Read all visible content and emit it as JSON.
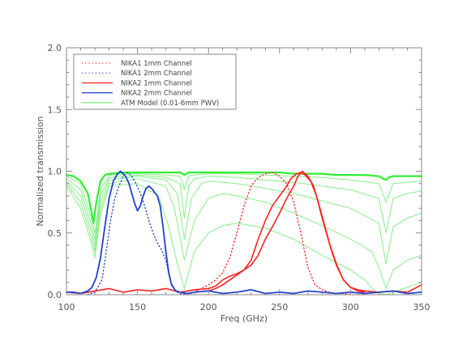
{
  "chart_data": {
    "type": "line",
    "xlabel": "Freq (GHz)",
    "ylabel": "Normalized transmission",
    "xlim": [
      100,
      350
    ],
    "ylim": [
      0,
      2.0
    ],
    "x_ticks": [
      "100",
      "150",
      "200",
      "250",
      "300",
      "350"
    ],
    "y_ticks": [
      "0.0",
      "0.5",
      "1.0",
      "1.5",
      "2.0"
    ],
    "grid": false,
    "legend_position": "top-left",
    "legend": [
      {
        "label": "NIKA1  1mm Channel",
        "color": "#ff2020",
        "style": "dotted"
      },
      {
        "label": "NIKA1  2mm Channel",
        "color": "#2040d0",
        "style": "dotted"
      },
      {
        "label": "NIKA2  1mm Channel",
        "color": "#ff2020",
        "style": "solid"
      },
      {
        "label": "NIKA2  2mm Channel",
        "color": "#2040d0",
        "style": "solid"
      },
      {
        "label": "ATM Model (0.01-6mm PWV)",
        "color": "#66ee66",
        "style": "solid"
      }
    ],
    "series": [
      {
        "name": "NIKA1  1mm Channel",
        "color": "#ff2020",
        "style": "dotted",
        "width": 1.3,
        "x": [
          185,
          190,
          195,
          200,
          205,
          210,
          215,
          220,
          225,
          230,
          235,
          240,
          245,
          250,
          255,
          260,
          265,
          270,
          275,
          280,
          285,
          290,
          295,
          300,
          310
        ],
        "y": [
          0,
          0.02,
          0.05,
          0.08,
          0.12,
          0.18,
          0.3,
          0.5,
          0.72,
          0.88,
          0.95,
          0.98,
          0.99,
          0.96,
          0.9,
          0.75,
          0.5,
          0.22,
          0.08,
          0.04,
          0.02,
          0.01,
          0.01,
          0,
          0
        ]
      },
      {
        "name": "NIKA1  2mm Channel",
        "color": "#2040d0",
        "style": "dotted",
        "width": 1.3,
        "x": [
          115,
          120,
          125,
          128,
          131,
          134,
          137,
          140,
          143,
          146,
          149,
          152,
          155,
          158,
          161,
          164,
          167,
          170,
          173,
          176,
          180,
          185
        ],
        "y": [
          0,
          0.02,
          0.12,
          0.35,
          0.6,
          0.78,
          0.88,
          0.96,
          0.99,
          0.96,
          0.9,
          0.82,
          0.72,
          0.6,
          0.5,
          0.42,
          0.36,
          0.28,
          0.12,
          0.03,
          0.01,
          0
        ]
      },
      {
        "name": "NIKA2  1mm Channel (a)",
        "color": "#ff2020",
        "style": "solid",
        "width": 1.6,
        "x": [
          100,
          110,
          120,
          130,
          140,
          150,
          160,
          170,
          180,
          190,
          200,
          205,
          210,
          215,
          220,
          225,
          230,
          235,
          240,
          245,
          250,
          255,
          258,
          262,
          265,
          268,
          272,
          276,
          280,
          285,
          290,
          295,
          300,
          305,
          310,
          320,
          330,
          340,
          345,
          350
        ],
        "y": [
          0.02,
          0.01,
          0.03,
          0.05,
          0.02,
          0.04,
          0.03,
          0.05,
          0.02,
          0.04,
          0.05,
          0.07,
          0.12,
          0.15,
          0.17,
          0.2,
          0.28,
          0.45,
          0.6,
          0.72,
          0.8,
          0.88,
          0.94,
          0.98,
          0.99,
          0.97,
          0.92,
          0.8,
          0.62,
          0.42,
          0.25,
          0.12,
          0.06,
          0.04,
          0.03,
          0.02,
          0.03,
          0.02,
          0.05,
          0.08
        ]
      },
      {
        "name": "NIKA2  1mm Channel (b)",
        "color": "#ff2020",
        "style": "solid",
        "width": 1.6,
        "x": [
          200,
          205,
          210,
          215,
          220,
          225,
          230,
          235,
          240,
          245,
          250,
          255,
          260,
          263,
          266,
          270,
          274,
          278,
          282,
          286,
          290,
          295,
          300,
          305,
          310
        ],
        "y": [
          0.03,
          0.05,
          0.08,
          0.12,
          0.16,
          0.2,
          0.24,
          0.32,
          0.45,
          0.55,
          0.66,
          0.78,
          0.88,
          0.96,
          1.0,
          0.96,
          0.88,
          0.72,
          0.55,
          0.38,
          0.24,
          0.12,
          0.06,
          0.03,
          0.02
        ]
      },
      {
        "name": "NIKA2  2mm Channel",
        "color": "#2040d0",
        "style": "solid",
        "width": 1.8,
        "x": [
          100,
          105,
          110,
          115,
          118,
          121,
          124,
          127,
          130,
          133,
          136,
          138,
          140,
          142,
          144,
          146,
          148,
          150,
          152,
          154,
          156,
          158,
          160,
          162,
          164,
          166,
          168,
          170,
          172,
          174,
          177,
          180,
          185,
          190,
          200,
          210,
          220,
          230,
          240,
          250,
          260,
          270,
          280,
          290,
          300,
          310,
          320,
          330,
          340,
          350
        ],
        "y": [
          0.02,
          0.02,
          0.01,
          0.03,
          0.06,
          0.14,
          0.3,
          0.55,
          0.78,
          0.92,
          0.98,
          1.0,
          0.98,
          0.95,
          0.9,
          0.82,
          0.74,
          0.68,
          0.72,
          0.8,
          0.86,
          0.88,
          0.86,
          0.83,
          0.8,
          0.72,
          0.55,
          0.35,
          0.18,
          0.08,
          0.03,
          0.02,
          0.01,
          0.02,
          0.03,
          0.01,
          0.02,
          0.04,
          0.01,
          0.02,
          0.01,
          0.03,
          0.02,
          0.01,
          0.02,
          0.01,
          0.02,
          0.03,
          0.01,
          0.02
        ]
      },
      {
        "name": "ATM Model (0.01-6mm PWV)",
        "color": "#33ee33",
        "style": "solid",
        "width": 2.2,
        "x": [
          100,
          105,
          110,
          115,
          118,
          119,
          121,
          124,
          127,
          130,
          140,
          150,
          160,
          170,
          180,
          183,
          186,
          190,
          200,
          210,
          220,
          230,
          240,
          250,
          260,
          270,
          280,
          290,
          300,
          310,
          320,
          323,
          325,
          327,
          330,
          340,
          350
        ],
        "y": [
          0.97,
          0.96,
          0.92,
          0.82,
          0.65,
          0.58,
          0.75,
          0.92,
          0.97,
          0.98,
          0.99,
          0.99,
          0.99,
          0.99,
          0.99,
          0.97,
          0.99,
          0.99,
          0.99,
          0.99,
          0.99,
          0.99,
          0.99,
          0.99,
          0.98,
          0.98,
          0.98,
          0.97,
          0.97,
          0.97,
          0.96,
          0.94,
          0.93,
          0.95,
          0.96,
          0.96,
          0.96
        ]
      },
      {
        "name": "ATM Model (0.01-6mm PWV) a",
        "color": "#88ee88",
        "style": "solid",
        "width": 1,
        "x": [
          100,
          110,
          118,
          120,
          124,
          130,
          150,
          170,
          180,
          183,
          186,
          190,
          200,
          220,
          240,
          260,
          280,
          290,
          300,
          320,
          325,
          330,
          340,
          350
        ],
        "y": [
          0.96,
          0.9,
          0.6,
          0.5,
          0.85,
          0.97,
          0.98,
          0.97,
          0.96,
          0.85,
          0.96,
          0.97,
          0.98,
          0.98,
          0.97,
          0.96,
          0.95,
          0.94,
          0.93,
          0.9,
          0.75,
          0.9,
          0.91,
          0.92
        ]
      },
      {
        "name": "ATM Model (0.01-6mm PWV) b",
        "color": "#88ee88",
        "style": "solid",
        "width": 1,
        "x": [
          100,
          110,
          118,
          120,
          124,
          130,
          150,
          170,
          180,
          183,
          186,
          190,
          200,
          220,
          240,
          260,
          280,
          300,
          320,
          325,
          330,
          340,
          350
        ],
        "y": [
          0.94,
          0.85,
          0.55,
          0.45,
          0.8,
          0.95,
          0.97,
          0.95,
          0.9,
          0.62,
          0.88,
          0.94,
          0.96,
          0.95,
          0.93,
          0.91,
          0.88,
          0.85,
          0.78,
          0.5,
          0.78,
          0.82,
          0.84
        ]
      },
      {
        "name": "ATM Model (0.01-6mm PWV) c",
        "color": "#88ee88",
        "style": "solid",
        "width": 1,
        "x": [
          100,
          110,
          118,
          120,
          124,
          130,
          150,
          170,
          178,
          183,
          188,
          195,
          200,
          220,
          240,
          260,
          280,
          300,
          320,
          325,
          330,
          340,
          350
        ],
        "y": [
          0.92,
          0.8,
          0.5,
          0.4,
          0.75,
          0.93,
          0.96,
          0.93,
          0.82,
          0.45,
          0.78,
          0.9,
          0.92,
          0.9,
          0.86,
          0.82,
          0.76,
          0.7,
          0.58,
          0.25,
          0.55,
          0.62,
          0.66
        ]
      },
      {
        "name": "ATM Model (0.01-6mm PWV) d",
        "color": "#88ee88",
        "style": "solid",
        "width": 1,
        "x": [
          100,
          110,
          118,
          120,
          124,
          130,
          150,
          170,
          176,
          183,
          190,
          200,
          210,
          220,
          240,
          260,
          280,
          300,
          315,
          320,
          325,
          330,
          340,
          350
        ],
        "y": [
          0.9,
          0.75,
          0.45,
          0.35,
          0.7,
          0.9,
          0.94,
          0.88,
          0.7,
          0.28,
          0.6,
          0.78,
          0.82,
          0.8,
          0.75,
          0.66,
          0.56,
          0.45,
          0.35,
          0.22,
          0.05,
          0.2,
          0.28,
          0.32
        ]
      },
      {
        "name": "ATM Model (0.01-6mm PWV) e",
        "color": "#88ee88",
        "style": "solid",
        "width": 1,
        "x": [
          100,
          110,
          118,
          120,
          124,
          130,
          150,
          165,
          172,
          178,
          183,
          190,
          200,
          210,
          220,
          240,
          260,
          280,
          300,
          310,
          318,
          325,
          330,
          340,
          350
        ],
        "y": [
          0.88,
          0.7,
          0.4,
          0.3,
          0.65,
          0.88,
          0.9,
          0.8,
          0.55,
          0.25,
          0.05,
          0.35,
          0.5,
          0.56,
          0.58,
          0.54,
          0.45,
          0.32,
          0.2,
          0.12,
          0.02,
          0.0,
          0.02,
          0.06,
          0.1
        ]
      }
    ]
  }
}
